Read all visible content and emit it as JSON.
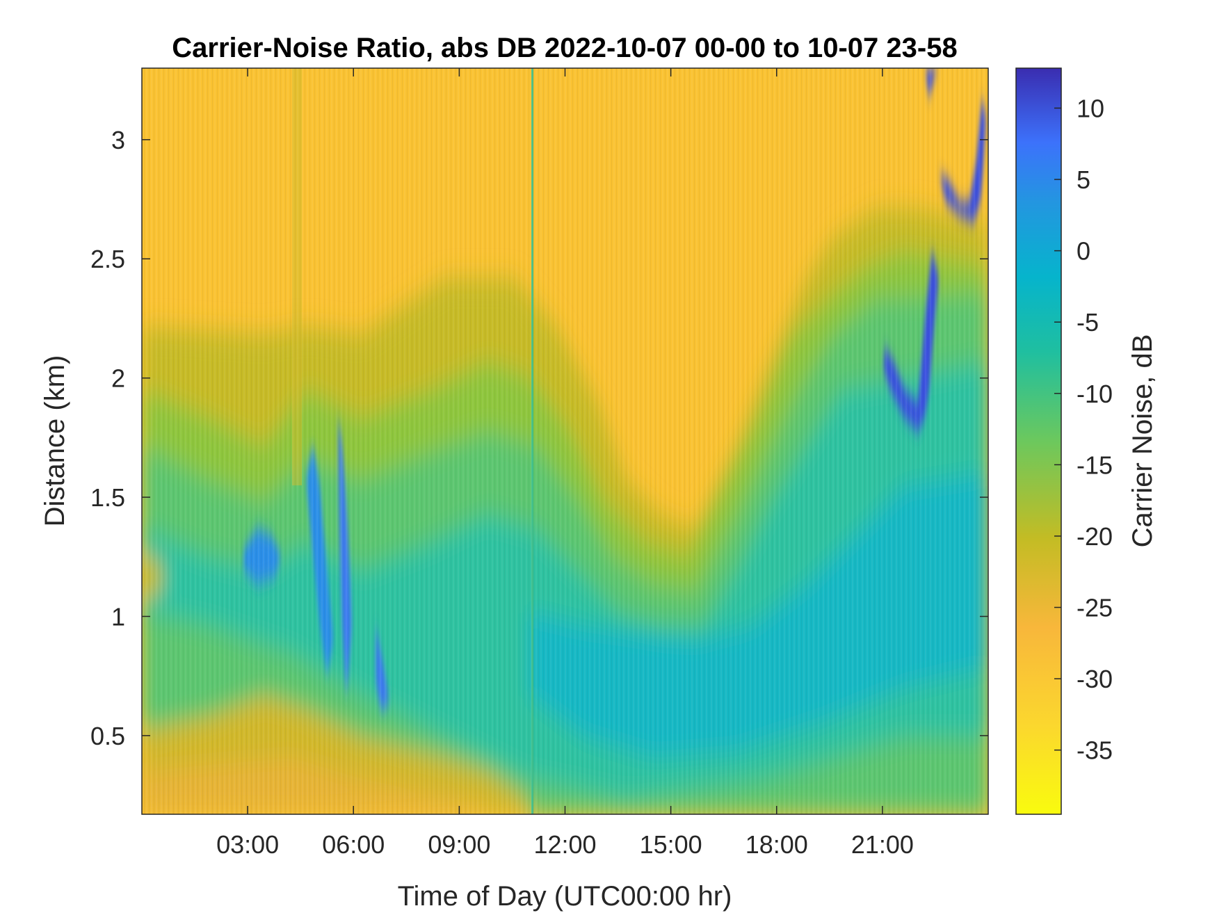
{
  "chart_data": {
    "type": "heatmap",
    "title": "Carrier-Noise Ratio, abs DB 2022-10-07 00-00 to 10-07 23-58",
    "xlabel": "Time of Day (UTC00:00 hr)",
    "ylabel": "Distance (km)",
    "x_tick_labels": [
      "03:00",
      "06:00",
      "09:00",
      "12:00",
      "15:00",
      "18:00",
      "21:00"
    ],
    "x_tick_values_hours": [
      3,
      6,
      9,
      12,
      15,
      18,
      21
    ],
    "xlim_hours": [
      0,
      24
    ],
    "y_tick_labels": [
      "0.5",
      "1",
      "1.5",
      "2",
      "2.5",
      "3"
    ],
    "y_tick_values": [
      0.5,
      1,
      1.5,
      2,
      2.5,
      3
    ],
    "ylim": [
      0.17,
      3.3
    ],
    "colorbar": {
      "label": "Carrier Noise, dB",
      "tick_labels": [
        "10",
        "5",
        "0",
        "-5",
        "-10",
        "-15",
        "-20",
        "-25",
        "-30",
        "-35"
      ],
      "tick_values": [
        10,
        5,
        0,
        -5,
        -10,
        -15,
        -20,
        -25,
        -30,
        -35
      ],
      "range": [
        -39.5,
        12.8
      ],
      "colormap": "parula"
    },
    "grid": false
  }
}
